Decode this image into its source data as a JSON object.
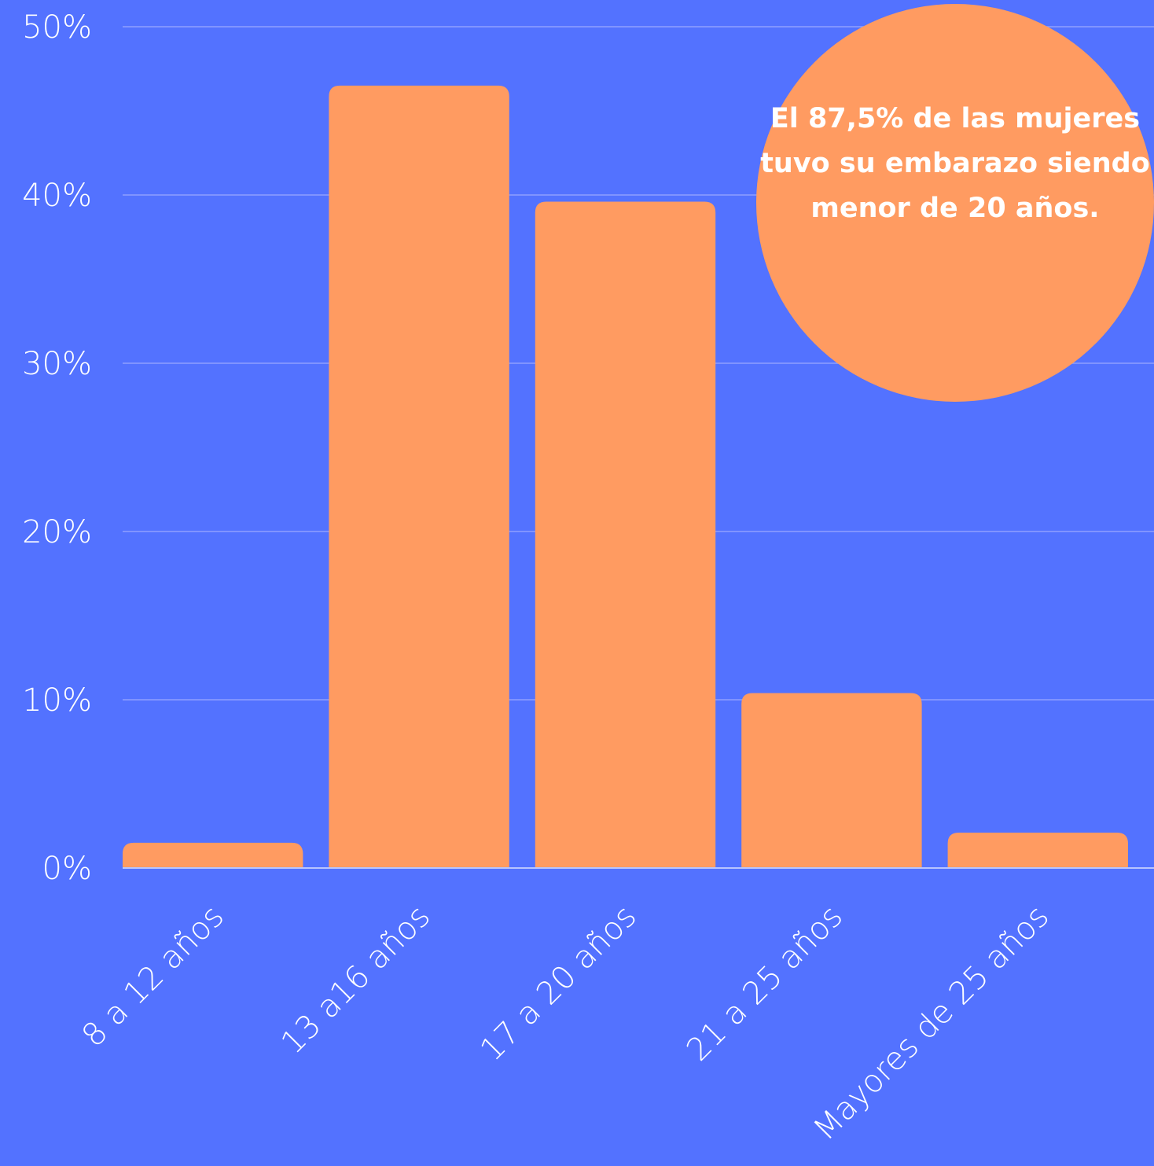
{
  "chart_data": {
    "type": "bar",
    "categories": [
      "8 a 12 años",
      "13 a16 años",
      "17 a 20 años",
      "21 a 25 años",
      "Mayores de 25 años"
    ],
    "values": [
      1.5,
      46.5,
      39.6,
      10.4,
      2.1
    ],
    "y_ticks": [
      "0%",
      "10%",
      "20%",
      "30%",
      "40%",
      "50%"
    ],
    "ylim": [
      0,
      50
    ],
    "grid": true,
    "bar_color": "#FF9B61",
    "background_color": "#5372FF",
    "annotation": "El 87,5% de las mujeres tuvo su embarazo siendo menor de 20 años."
  }
}
